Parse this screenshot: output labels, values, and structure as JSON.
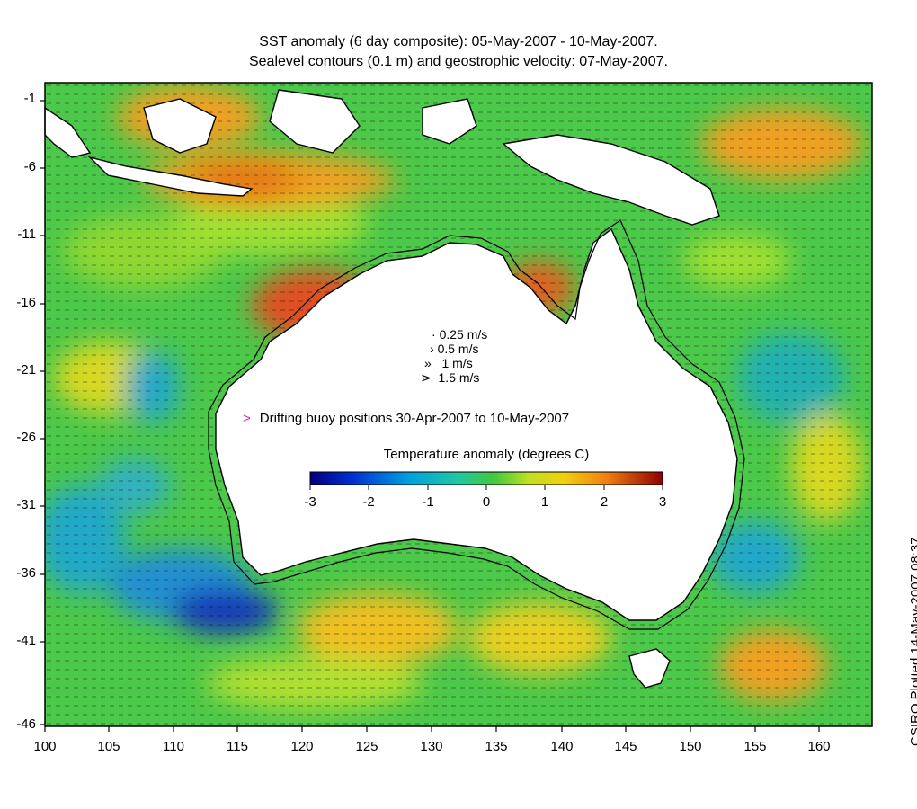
{
  "title_line1": "SST anomaly (6 day composite): 05-May-2007 - 10-May-2007.",
  "title_line2": "Sealevel contours (0.1 m) and geostrophic velocity: 07-May-2007.",
  "side_label": "CSIRO Plotted 14-May-2007 08:37",
  "y_ticks": [
    "-1",
    "-6",
    "-11",
    "-16",
    "-21",
    "-26",
    "-31",
    "-36",
    "-41",
    "-46"
  ],
  "x_ticks": [
    "100",
    "105",
    "110",
    "115",
    "120",
    "125",
    "130",
    "135",
    "140",
    "145",
    "150",
    "155",
    "160"
  ],
  "velocity_legend": [
    {
      "arrow": "·",
      "label": "0.25 m/s"
    },
    {
      "arrow": "›",
      "label": "0.5 m/s"
    },
    {
      "arrow": "»",
      "label": "1 m/s"
    },
    {
      "arrow": "⋗",
      "label": "1.5 m/s"
    }
  ],
  "buoy_marker": ">",
  "buoy_label": "Drifting buoy positions 30-Apr-2007 to 10-May-2007",
  "colorbar_title": "Temperature anomaly (degrees C)",
  "colorbar_ticks": [
    "-3",
    "-2",
    "-1",
    "0",
    "1",
    "2",
    "3"
  ],
  "colorbar_range": [
    -3,
    3
  ],
  "colors": {
    "ocean_base": "#4cc84a",
    "warm": "#f0a020",
    "hot": "#c03010",
    "cool": "#20a8c8",
    "cold": "#1838b8",
    "land": "#ffffff",
    "buoy": "#e020e0"
  }
}
